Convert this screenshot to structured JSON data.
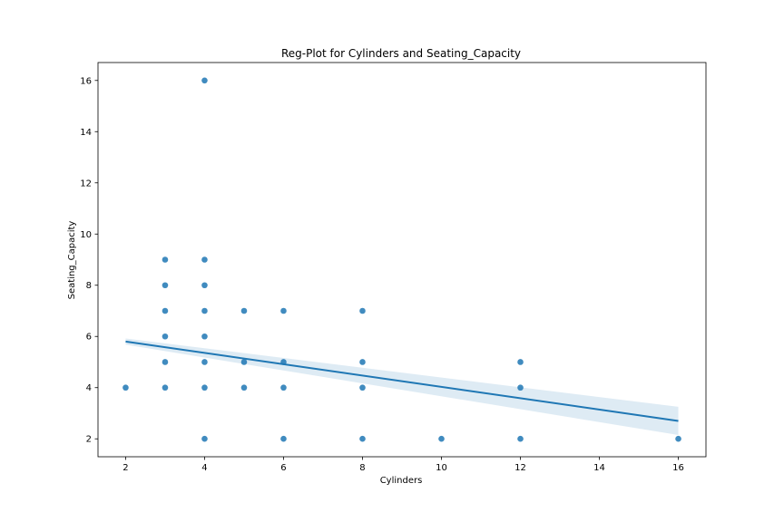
{
  "chart_data": {
    "type": "scatter",
    "title": "Reg-Plot for Cylinders and Seating_Capacity",
    "xlabel": "Cylinders",
    "ylabel": "Seating_Capacity",
    "xlim": [
      1.3,
      16.7
    ],
    "ylim": [
      1.3,
      16.7
    ],
    "xticks": [
      2,
      4,
      6,
      8,
      10,
      12,
      14,
      16
    ],
    "yticks": [
      2,
      4,
      6,
      8,
      10,
      12,
      14,
      16
    ],
    "grid": false,
    "colors": {
      "points": "#1f77b4",
      "line": "#1f77b4",
      "band": "#1f77b4"
    },
    "points": [
      [
        2,
        4
      ],
      [
        3,
        4
      ],
      [
        3,
        5
      ],
      [
        3,
        6
      ],
      [
        3,
        7
      ],
      [
        3,
        8
      ],
      [
        3,
        9
      ],
      [
        4,
        2
      ],
      [
        4,
        4
      ],
      [
        4,
        5
      ],
      [
        4,
        6
      ],
      [
        4,
        7
      ],
      [
        4,
        8
      ],
      [
        4,
        9
      ],
      [
        4,
        16
      ],
      [
        5,
        4
      ],
      [
        5,
        5
      ],
      [
        5,
        7
      ],
      [
        6,
        2
      ],
      [
        6,
        4
      ],
      [
        6,
        5
      ],
      [
        6,
        7
      ],
      [
        8,
        2
      ],
      [
        8,
        4
      ],
      [
        8,
        5
      ],
      [
        8,
        7
      ],
      [
        10,
        2
      ],
      [
        12,
        2
      ],
      [
        12,
        4
      ],
      [
        12,
        5
      ],
      [
        16,
        2
      ]
    ],
    "regression": {
      "x": [
        2,
        16
      ],
      "y": [
        5.8,
        2.7
      ],
      "ci_lower": [
        5.68,
        2.15
      ],
      "ci_upper": [
        5.92,
        3.25
      ]
    }
  }
}
